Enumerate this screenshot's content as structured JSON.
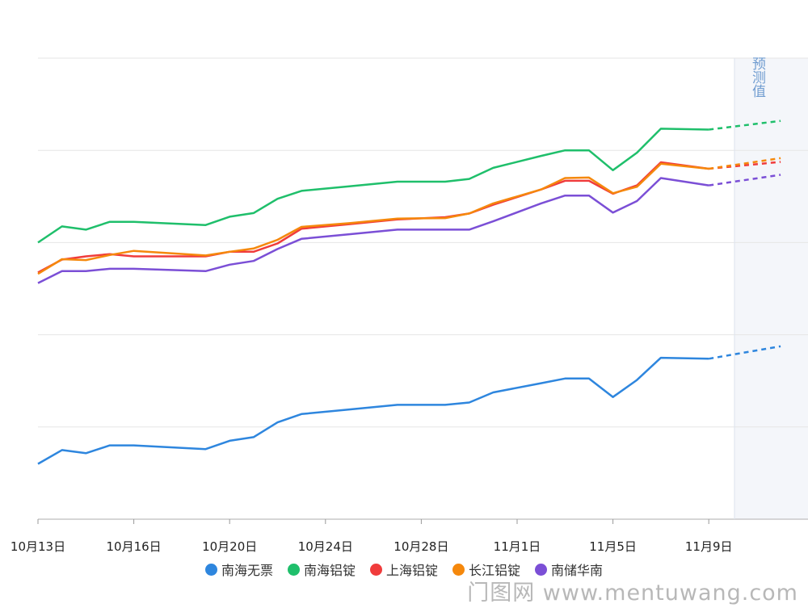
{
  "chart_data": {
    "type": "line",
    "title": "",
    "xlabel": "",
    "ylabel": "",
    "x_ticks": [
      "10月13日",
      "10月16日",
      "10月20日",
      "10月24日",
      "10月28日",
      "11月1日",
      "11月5日",
      "11月9日"
    ],
    "ylim": [
      0,
      100
    ],
    "grid": true,
    "forecast_label": "预测值",
    "series": [
      {
        "name": "南海无票",
        "color": "#2e86de",
        "values": [
          [
            0,
            12
          ],
          [
            1,
            15
          ],
          [
            2,
            14.3
          ],
          [
            3,
            16
          ],
          [
            4,
            16
          ],
          [
            7,
            15.2
          ],
          [
            8,
            17
          ],
          [
            9,
            17.8
          ],
          [
            10,
            21
          ],
          [
            11,
            22.8
          ],
          [
            13,
            23.8
          ],
          [
            15,
            24.8
          ],
          [
            17,
            24.8
          ],
          [
            18,
            25.3
          ],
          [
            19,
            27.5
          ],
          [
            21,
            29.5
          ],
          [
            22,
            30.5
          ],
          [
            23,
            30.5
          ],
          [
            24,
            26.5
          ],
          [
            25,
            30.2
          ],
          [
            26,
            35
          ],
          [
            28,
            34.8
          ]
        ],
        "forecast": [
          [
            28,
            34.8
          ],
          [
            31,
            37.5
          ]
        ]
      },
      {
        "name": "南海铝锭",
        "color": "#1fbf6b",
        "values": [
          [
            0,
            60
          ],
          [
            1,
            63.5
          ],
          [
            2,
            62.8
          ],
          [
            3,
            64.5
          ],
          [
            4,
            64.5
          ],
          [
            7,
            63.8
          ],
          [
            8,
            65.6
          ],
          [
            9,
            66.4
          ],
          [
            10,
            69.5
          ],
          [
            11,
            71.2
          ],
          [
            13,
            72.2
          ],
          [
            15,
            73.2
          ],
          [
            17,
            73.2
          ],
          [
            18,
            73.8
          ],
          [
            19,
            76.2
          ],
          [
            21,
            78.8
          ],
          [
            22,
            80
          ],
          [
            23,
            80
          ],
          [
            24,
            75.7
          ],
          [
            25,
            79.5
          ],
          [
            26,
            84.7
          ],
          [
            28,
            84.5
          ]
        ],
        "forecast": [
          [
            28,
            84.5
          ],
          [
            31,
            86.4
          ]
        ]
      },
      {
        "name": "上海铝锭",
        "color": "#f03c3c",
        "values": [
          [
            0,
            53.5
          ],
          [
            1,
            56.3
          ],
          [
            2,
            57
          ],
          [
            3,
            57.5
          ],
          [
            4,
            57
          ],
          [
            7,
            57
          ],
          [
            8,
            58
          ],
          [
            9,
            58
          ],
          [
            10,
            59.8
          ],
          [
            11,
            63
          ],
          [
            13,
            64
          ],
          [
            15,
            65
          ],
          [
            17,
            65.5
          ],
          [
            18,
            66.3
          ],
          [
            19,
            68.2
          ],
          [
            21,
            71.5
          ],
          [
            22,
            73.4
          ],
          [
            23,
            73.4
          ],
          [
            24,
            70.6
          ],
          [
            25,
            72.4
          ],
          [
            26,
            77.4
          ],
          [
            28,
            76
          ]
        ],
        "forecast": [
          [
            28,
            76
          ],
          [
            31,
            77.5
          ]
        ]
      },
      {
        "name": "长江铝锭",
        "color": "#f5880c",
        "values": [
          [
            0,
            53.2
          ],
          [
            1,
            56.4
          ],
          [
            2,
            56.2
          ],
          [
            3,
            57.3
          ],
          [
            4,
            58.2
          ],
          [
            7,
            57.2
          ],
          [
            8,
            58
          ],
          [
            9,
            58.7
          ],
          [
            10,
            60.6
          ],
          [
            11,
            63.4
          ],
          [
            13,
            64.2
          ],
          [
            15,
            65.2
          ],
          [
            17,
            65.3
          ],
          [
            18,
            66.3
          ],
          [
            19,
            68.5
          ],
          [
            21,
            71.5
          ],
          [
            22,
            74
          ],
          [
            23,
            74.1
          ],
          [
            24,
            70.7
          ],
          [
            25,
            72.1
          ],
          [
            26,
            77.1
          ],
          [
            28,
            76
          ]
        ],
        "forecast": [
          [
            28,
            76
          ],
          [
            31,
            78.3
          ]
        ]
      },
      {
        "name": "南储华南",
        "color": "#7b4fd6",
        "values": [
          [
            0,
            51.2
          ],
          [
            1,
            53.8
          ],
          [
            2,
            53.8
          ],
          [
            3,
            54.3
          ],
          [
            4,
            54.3
          ],
          [
            7,
            53.8
          ],
          [
            8,
            55.2
          ],
          [
            9,
            56
          ],
          [
            10,
            58.6
          ],
          [
            11,
            60.8
          ],
          [
            13,
            61.8
          ],
          [
            15,
            62.8
          ],
          [
            17,
            62.8
          ],
          [
            18,
            62.8
          ],
          [
            19,
            64.6
          ],
          [
            21,
            68.5
          ],
          [
            22,
            70.2
          ],
          [
            23,
            70.2
          ],
          [
            24,
            66.5
          ],
          [
            25,
            69
          ],
          [
            26,
            74
          ],
          [
            28,
            72.4
          ]
        ],
        "forecast": [
          [
            28,
            72.4
          ],
          [
            31,
            74.7
          ]
        ]
      }
    ]
  },
  "watermark": "门图网 www.mentuwang.com"
}
